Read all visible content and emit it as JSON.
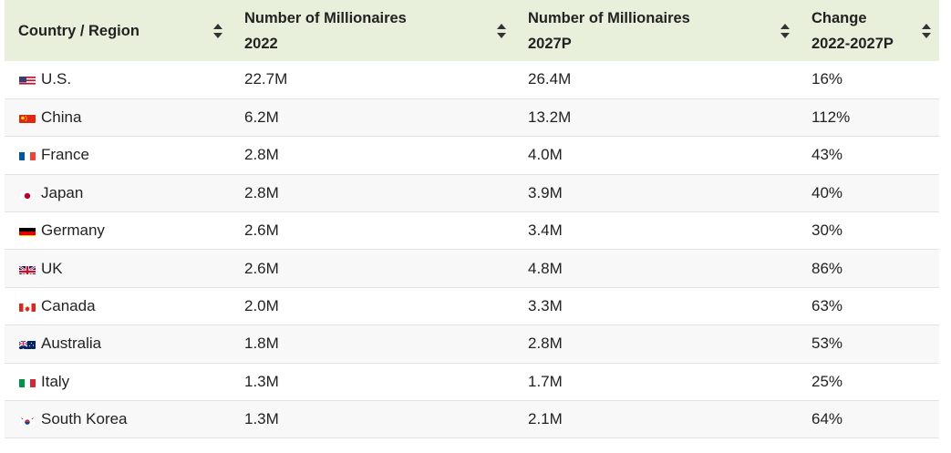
{
  "table": {
    "headers": [
      {
        "line1": "Country / Region",
        "line2": ""
      },
      {
        "line1": "Number of Millionaires",
        "line2": "2022"
      },
      {
        "line1": "Number of Millionaires",
        "line2": "2027P"
      },
      {
        "line1": "Change",
        "line2": "2022-2027P"
      }
    ],
    "rows": [
      {
        "country": "U.S.",
        "flag": "us-flag-icon",
        "m2022": "22.7M",
        "m2027": "26.4M",
        "change": "16%"
      },
      {
        "country": "China",
        "flag": "china-flag-icon",
        "m2022": "6.2M",
        "m2027": "13.2M",
        "change": "112%"
      },
      {
        "country": "France",
        "flag": "france-flag-icon",
        "m2022": "2.8M",
        "m2027": "4.0M",
        "change": "43%"
      },
      {
        "country": "Japan",
        "flag": "japan-flag-icon",
        "m2022": "2.8M",
        "m2027": "3.9M",
        "change": "40%"
      },
      {
        "country": "Germany",
        "flag": "germany-flag-icon",
        "m2022": "2.6M",
        "m2027": "3.4M",
        "change": "30%"
      },
      {
        "country": "UK",
        "flag": "uk-flag-icon",
        "m2022": "2.6M",
        "m2027": "4.8M",
        "change": "86%"
      },
      {
        "country": "Canada",
        "flag": "canada-flag-icon",
        "m2022": "2.0M",
        "m2027": "3.3M",
        "change": "63%"
      },
      {
        "country": "Australia",
        "flag": "australia-flag-icon",
        "m2022": "1.8M",
        "m2027": "2.8M",
        "change": "53%"
      },
      {
        "country": "Italy",
        "flag": "italy-flag-icon",
        "m2022": "1.3M",
        "m2027": "1.7M",
        "change": "25%"
      },
      {
        "country": "South Korea",
        "flag": "south-korea-flag-icon",
        "m2022": "1.3M",
        "m2027": "2.1M",
        "change": "64%"
      }
    ]
  },
  "colors": {
    "header_bg": "#e8f0dc",
    "row_alt_bg": "#f8f8f8",
    "divider": "#e2e2e2"
  }
}
